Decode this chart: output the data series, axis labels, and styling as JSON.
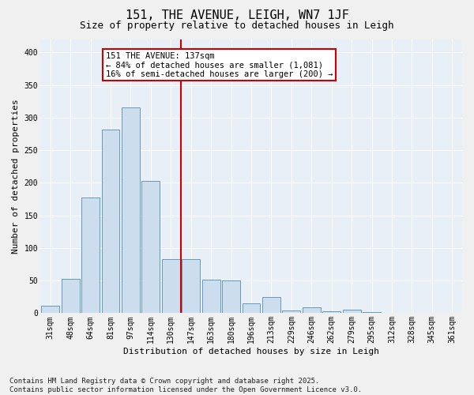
{
  "title1": "151, THE AVENUE, LEIGH, WN7 1JF",
  "title2": "Size of property relative to detached houses in Leigh",
  "xlabel": "Distribution of detached houses by size in Leigh",
  "ylabel": "Number of detached properties",
  "categories": [
    "31sqm",
    "48sqm",
    "64sqm",
    "81sqm",
    "97sqm",
    "114sqm",
    "130sqm",
    "147sqm",
    "163sqm",
    "180sqm",
    "196sqm",
    "213sqm",
    "229sqm",
    "246sqm",
    "262sqm",
    "279sqm",
    "295sqm",
    "312sqm",
    "328sqm",
    "345sqm",
    "361sqm"
  ],
  "values": [
    12,
    53,
    178,
    282,
    316,
    203,
    83,
    83,
    52,
    50,
    15,
    25,
    4,
    9,
    3,
    5,
    2,
    1,
    1,
    1,
    1
  ],
  "bar_color": "#ccdded",
  "bar_edge_color": "#6699bb",
  "vline_pos": 6.5,
  "annotation_line1": "151 THE AVENUE: 137sqm",
  "annotation_line2": "← 84% of detached houses are smaller (1,081)",
  "annotation_line3": "16% of semi-detached houses are larger (200) →",
  "annotation_box_facecolor": "#ffffff",
  "annotation_box_edgecolor": "#cc0000",
  "vline_color": "#cc0000",
  "footer_line1": "Contains HM Land Registry data © Crown copyright and database right 2025.",
  "footer_line2": "Contains public sector information licensed under the Open Government Licence v3.0.",
  "ylim": [
    0,
    420
  ],
  "yticks": [
    0,
    50,
    100,
    150,
    200,
    250,
    300,
    350,
    400
  ],
  "plot_bg_color": "#e8eff6",
  "fig_bg_color": "#f0f0f0",
  "grid_color": "#ffffff",
  "title1_fontsize": 11,
  "title2_fontsize": 9,
  "xlabel_fontsize": 8,
  "ylabel_fontsize": 8,
  "tick_fontsize": 7,
  "annotation_fontsize": 7.5,
  "footer_fontsize": 6.5
}
